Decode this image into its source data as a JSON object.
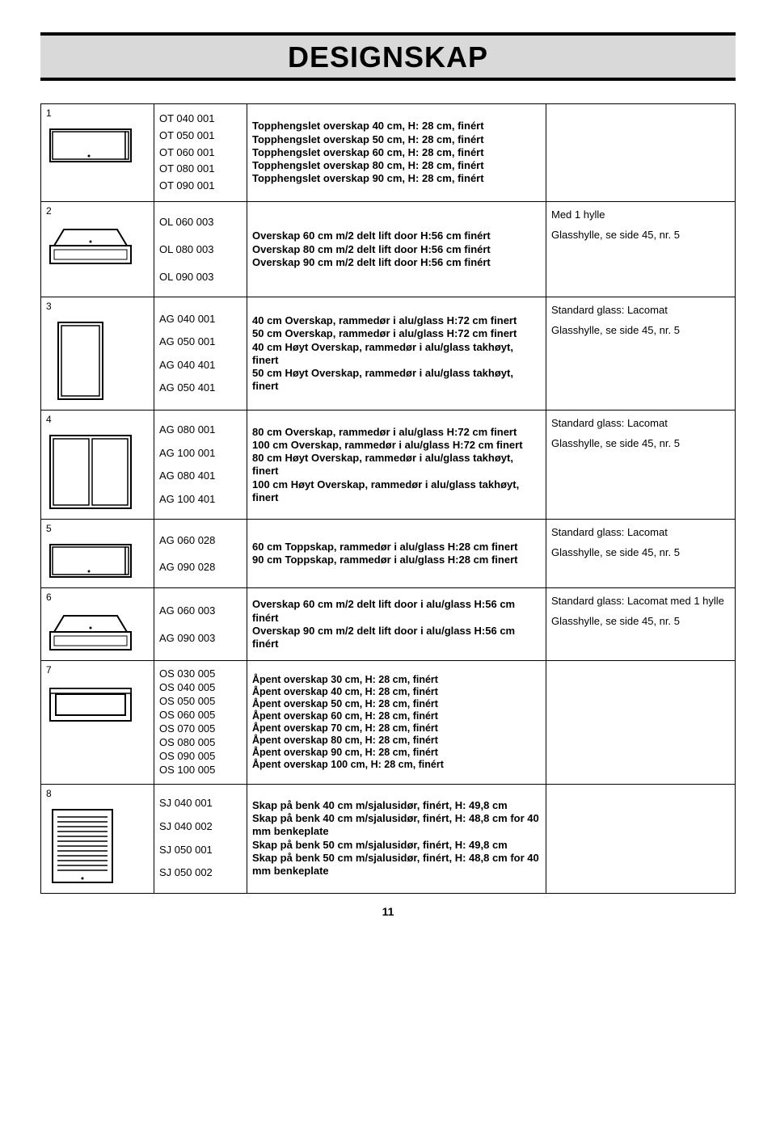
{
  "title": "DESIGNSKAP",
  "pageNumber": "11",
  "rows": [
    {
      "num": "1",
      "codes": [
        "OT 040 001",
        "OT 050 001",
        "OT 060 001",
        "OT 080 001",
        "OT 090 001"
      ],
      "descs": [
        "Topphengslet overskap 40 cm, H: 28 cm, finért",
        "Topphengslet overskap 50 cm, H: 28 cm, finért",
        "Topphengslet overskap 60 cm, H: 28 cm, finért",
        "Topphengslet overskap 80 cm, H: 28 cm, finért",
        "Topphengslet overskap 90 cm, H: 28 cm, finért"
      ],
      "notes": [],
      "icon": "closed-single"
    },
    {
      "num": "2",
      "codes": [
        "OL 060 003",
        "OL 080 003",
        "OL 090 003"
      ],
      "descs": [
        "Overskap 60 cm m/2 delt lift door H:56 cm finért",
        "Overskap 80 cm m/2 delt lift door H:56 cm finért",
        "Overskap 90 cm m/2 delt lift door H:56 cm finért"
      ],
      "notes": [
        "Med 1 hylle",
        "Glasshylle, se side 45, nr. 5"
      ],
      "icon": "lift"
    },
    {
      "num": "3",
      "codes": [
        "AG 040 001",
        "AG 050 001",
        "AG 040 401",
        "AG 050 401"
      ],
      "descs": [
        "40 cm Overskap, rammedør i alu/glass H:72 cm finert",
        "50 cm Overskap, rammedør i alu/glass H:72 cm finert",
        "40 cm Høyt Overskap, rammedør i alu/glass takhøyt, finert",
        "50 cm Høyt Overskap, rammedør i alu/glass takhøyt, finert"
      ],
      "notes": [
        "Standard glass: Lacomat",
        "Glasshylle, se side 45, nr. 5"
      ],
      "icon": "tall-single"
    },
    {
      "num": "4",
      "codes": [
        "AG 080 001",
        "AG 100 001",
        "AG 080 401",
        "AG 100 401"
      ],
      "descs": [
        "80 cm Overskap, rammedør i alu/glass H:72 cm finert",
        "100 cm Overskap, rammedør i alu/glass H:72 cm finert",
        "80 cm Høyt Overskap, rammedør i alu/glass takhøyt, finert",
        "100 cm Høyt Overskap, rammedør i alu/glass takhøyt, finert"
      ],
      "notes": [
        "Standard glass: Lacomat",
        "Glasshylle, se side 45, nr. 5"
      ],
      "icon": "tall-double"
    },
    {
      "num": "5",
      "codes": [
        "AG 060 028",
        "AG 090 028"
      ],
      "descs": [
        "60 cm Toppskap, rammedør i alu/glass H:28 cm finert",
        "90 cm Toppskap, rammedør i alu/glass H:28 cm finert"
      ],
      "notes": [
        "Standard glass: Lacomat",
        "Glasshylle, se side 45, nr. 5"
      ],
      "icon": "closed-single"
    },
    {
      "num": "6",
      "codes": [
        "AG 060 003",
        "AG 090 003"
      ],
      "descs": [
        "Overskap 60 cm m/2 delt lift door i alu/glass H:56 cm finért",
        "Overskap 90 cm m/2 delt lift door i alu/glass H:56 cm finért"
      ],
      "notes": [
        "Standard glass: Lacomat med 1 hylle",
        "Glasshylle, se side 45, nr. 5"
      ],
      "icon": "lift"
    },
    {
      "num": "7",
      "codes": [
        "OS 030 005",
        "OS 040 005",
        "OS 050 005",
        "OS 060 005",
        "OS 070 005",
        "OS 080 005",
        "OS 090 005",
        "OS 100 005"
      ],
      "descs": [
        "Åpent overskap 30 cm, H: 28 cm, finért",
        "Åpent overskap 40 cm, H: 28 cm, finért",
        "Åpent overskap 50 cm, H: 28 cm, finért",
        "Åpent overskap 60 cm, H: 28 cm, finért",
        "Åpent overskap 70 cm, H: 28 cm, finért",
        "Åpent overskap 80 cm, H: 28 cm, finért",
        "Åpent overskap 90 cm, H: 28 cm, finért",
        "Åpent overskap 100 cm, H: 28 cm, finért"
      ],
      "notes": [],
      "icon": "open"
    },
    {
      "num": "8",
      "codes": [
        "SJ 040 001",
        "SJ 040 002",
        "SJ 050 001",
        "SJ 050 002"
      ],
      "descs": [
        "Skap på benk 40 cm m/sjalusidør, finért, H: 49,8 cm",
        "Skap på benk 40 cm m/sjalusidør, finért, H: 48,8 cm for 40 mm benkeplate",
        "Skap på benk 50 cm m/sjalusidør, finért, H: 49,8 cm",
        "Skap på benk 50 cm m/sjalusidør, finért, H: 48,8 cm for 40 mm benkeplate"
      ],
      "notes": [],
      "icon": "jalousie"
    }
  ]
}
